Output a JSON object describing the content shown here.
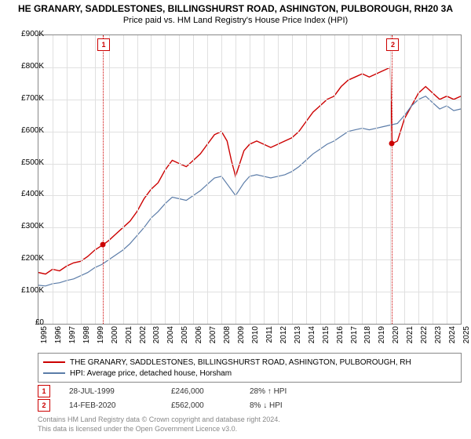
{
  "title": "HE GRANARY, SADDLESTONES, BILLINGSHURST ROAD, ASHINGTON, PULBOROUGH, RH20 3A",
  "subtitle": "Price paid vs. HM Land Registry's House Price Index (HPI)",
  "chart": {
    "type": "line",
    "ylim": [
      0,
      900
    ],
    "ytick_step": 100,
    "ylabel_prefix": "£",
    "ylabel_suffix": "K",
    "xlim": [
      1995,
      2025
    ],
    "xtick_step": 1,
    "grid_color": "#e0e0e0",
    "background_color": "#ffffff",
    "series": [
      {
        "name": "granary",
        "label": "THE GRANARY, SADDLESTONES, BILLINGSHURST ROAD, ASHINGTON, PULBOROUGH, RH",
        "color": "#cc0000",
        "line_width": 1.4,
        "data": [
          [
            1995,
            160
          ],
          [
            1995.5,
            155
          ],
          [
            1996,
            170
          ],
          [
            1996.5,
            165
          ],
          [
            1997,
            180
          ],
          [
            1997.5,
            190
          ],
          [
            1998,
            195
          ],
          [
            1998.5,
            210
          ],
          [
            1999,
            230
          ],
          [
            1999.57,
            246
          ],
          [
            2000,
            260
          ],
          [
            2000.5,
            280
          ],
          [
            2001,
            300
          ],
          [
            2001.5,
            320
          ],
          [
            2002,
            350
          ],
          [
            2002.5,
            390
          ],
          [
            2003,
            420
          ],
          [
            2003.5,
            440
          ],
          [
            2004,
            480
          ],
          [
            2004.5,
            510
          ],
          [
            2005,
            500
          ],
          [
            2005.5,
            490
          ],
          [
            2006,
            510
          ],
          [
            2006.5,
            530
          ],
          [
            2007,
            560
          ],
          [
            2007.5,
            590
          ],
          [
            2008,
            600
          ],
          [
            2008.4,
            570
          ],
          [
            2008.7,
            510
          ],
          [
            2009,
            460
          ],
          [
            2009.3,
            500
          ],
          [
            2009.6,
            540
          ],
          [
            2010,
            560
          ],
          [
            2010.5,
            570
          ],
          [
            2011,
            560
          ],
          [
            2011.5,
            550
          ],
          [
            2012,
            560
          ],
          [
            2012.5,
            570
          ],
          [
            2013,
            580
          ],
          [
            2013.5,
            600
          ],
          [
            2014,
            630
          ],
          [
            2014.5,
            660
          ],
          [
            2015,
            680
          ],
          [
            2015.5,
            700
          ],
          [
            2016,
            710
          ],
          [
            2016.5,
            740
          ],
          [
            2017,
            760
          ],
          [
            2017.5,
            770
          ],
          [
            2018,
            780
          ],
          [
            2018.5,
            770
          ],
          [
            2019,
            780
          ],
          [
            2019.5,
            790
          ],
          [
            2020,
            800
          ],
          [
            2020.12,
            562
          ],
          [
            2020.5,
            570
          ],
          [
            2021,
            640
          ],
          [
            2021.5,
            680
          ],
          [
            2022,
            720
          ],
          [
            2022.5,
            740
          ],
          [
            2023,
            720
          ],
          [
            2023.5,
            700
          ],
          [
            2024,
            710
          ],
          [
            2024.5,
            700
          ],
          [
            2025,
            710
          ]
        ]
      },
      {
        "name": "hpi",
        "label": "HPI: Average price, detached house, Horsham",
        "color": "#5b7ca8",
        "line_width": 1.2,
        "data": [
          [
            1995,
            120
          ],
          [
            1995.5,
            118
          ],
          [
            1996,
            125
          ],
          [
            1996.5,
            128
          ],
          [
            1997,
            135
          ],
          [
            1997.5,
            140
          ],
          [
            1998,
            150
          ],
          [
            1998.5,
            160
          ],
          [
            1999,
            175
          ],
          [
            1999.5,
            185
          ],
          [
            2000,
            200
          ],
          [
            2000.5,
            215
          ],
          [
            2001,
            230
          ],
          [
            2001.5,
            250
          ],
          [
            2002,
            275
          ],
          [
            2002.5,
            300
          ],
          [
            2003,
            330
          ],
          [
            2003.5,
            350
          ],
          [
            2004,
            375
          ],
          [
            2004.5,
            395
          ],
          [
            2005,
            390
          ],
          [
            2005.5,
            385
          ],
          [
            2006,
            400
          ],
          [
            2006.5,
            415
          ],
          [
            2007,
            435
          ],
          [
            2007.5,
            455
          ],
          [
            2008,
            460
          ],
          [
            2008.5,
            430
          ],
          [
            2009,
            400
          ],
          [
            2009.3,
            420
          ],
          [
            2009.6,
            440
          ],
          [
            2010,
            460
          ],
          [
            2010.5,
            465
          ],
          [
            2011,
            460
          ],
          [
            2011.5,
            455
          ],
          [
            2012,
            460
          ],
          [
            2012.5,
            465
          ],
          [
            2013,
            475
          ],
          [
            2013.5,
            490
          ],
          [
            2014,
            510
          ],
          [
            2014.5,
            530
          ],
          [
            2015,
            545
          ],
          [
            2015.5,
            560
          ],
          [
            2016,
            570
          ],
          [
            2016.5,
            585
          ],
          [
            2017,
            600
          ],
          [
            2017.5,
            605
          ],
          [
            2018,
            610
          ],
          [
            2018.5,
            605
          ],
          [
            2019,
            610
          ],
          [
            2019.5,
            615
          ],
          [
            2020,
            620
          ],
          [
            2020.5,
            625
          ],
          [
            2021,
            650
          ],
          [
            2021.5,
            680
          ],
          [
            2022,
            700
          ],
          [
            2022.5,
            710
          ],
          [
            2023,
            690
          ],
          [
            2023.5,
            670
          ],
          [
            2024,
            680
          ],
          [
            2024.5,
            665
          ],
          [
            2025,
            670
          ]
        ]
      }
    ],
    "markers": [
      {
        "id": "1",
        "x": 1999.57,
        "y": 246
      },
      {
        "id": "2",
        "x": 2020.12,
        "y": 562
      }
    ]
  },
  "legend": {
    "items": [
      {
        "color": "#cc0000",
        "label": "THE GRANARY, SADDLESTONES, BILLINGSHURST ROAD, ASHINGTON, PULBOROUGH, RH"
      },
      {
        "color": "#5b7ca8",
        "label": "HPI: Average price, detached house, Horsham"
      }
    ]
  },
  "transactions": [
    {
      "id": "1",
      "date": "28-JUL-1999",
      "price": "£246,000",
      "pct": "28% ↑ HPI"
    },
    {
      "id": "2",
      "date": "14-FEB-2020",
      "price": "£562,000",
      "pct": "8% ↓ HPI"
    }
  ],
  "footer": {
    "line1": "Contains HM Land Registry data © Crown copyright and database right 2024.",
    "line2": "This data is licensed under the Open Government Licence v3.0."
  }
}
